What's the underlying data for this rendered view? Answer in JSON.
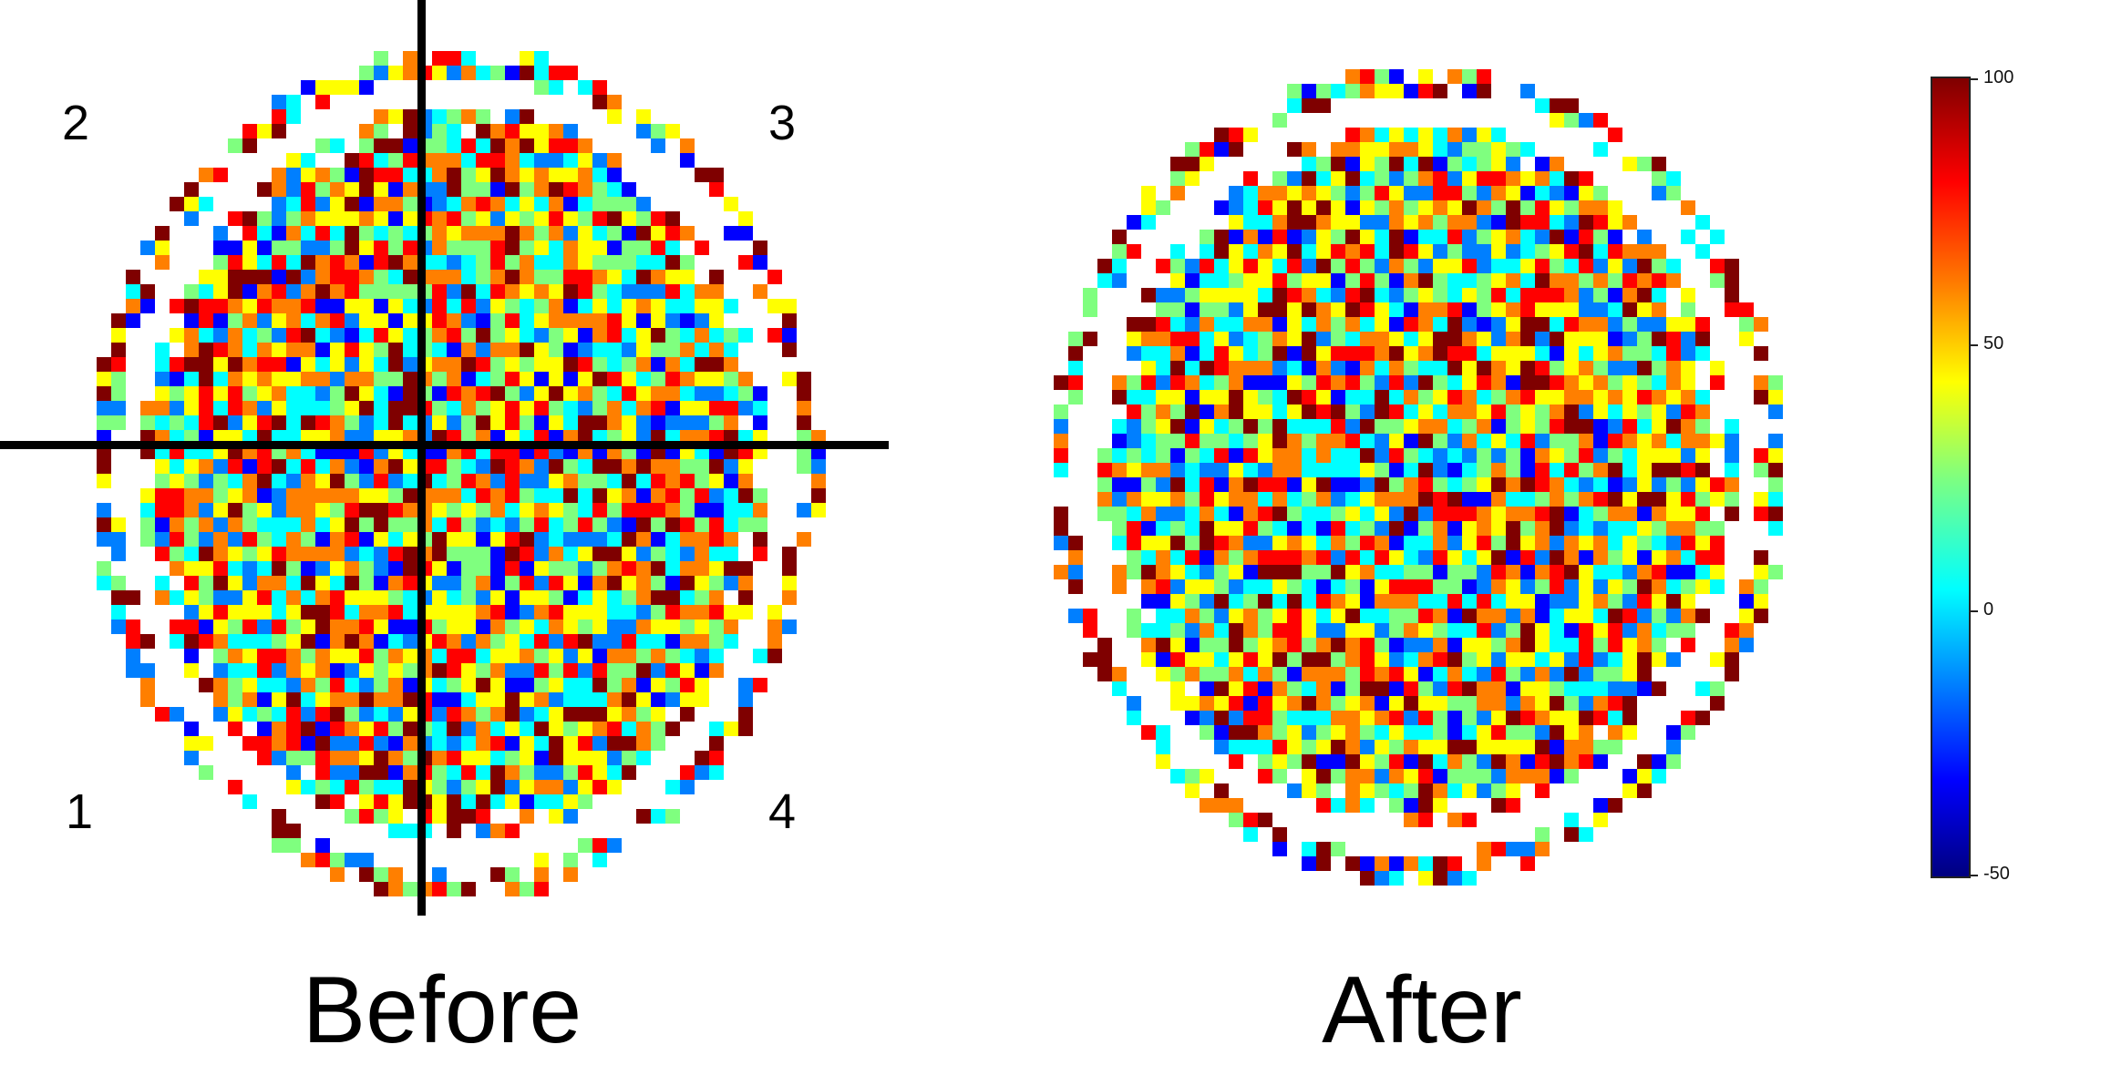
{
  "before": {
    "caption": "Before",
    "quadrant_labels": [
      "1",
      "2",
      "3",
      "4"
    ]
  },
  "after": {
    "caption": "After"
  },
  "colorbar": {
    "max_label": "100",
    "mid_label": "50",
    "zero_label": "0",
    "min_label": "-50",
    "colormap": "jet",
    "colors": [
      "#00007f",
      "#0000ff",
      "#007fff",
      "#00ffff",
      "#7fff7f",
      "#ffff00",
      "#ff7f00",
      "#ff0000",
      "#7f0000"
    ]
  },
  "crosshair_color": "#000000"
}
